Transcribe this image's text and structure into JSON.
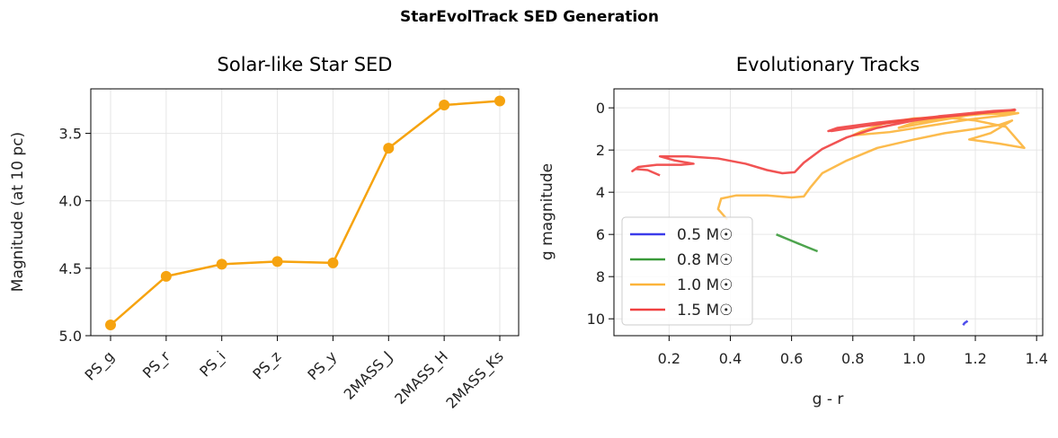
{
  "figure": {
    "suptitle": "StarEvolTrack SED Generation"
  },
  "chart_data": [
    {
      "type": "line",
      "title": "Solar-like Star SED",
      "xlabel": "",
      "ylabel": "Magnitude (at 10 pc)",
      "ylim": [
        5.0,
        3.17
      ],
      "y_inverted": true,
      "yticks": [
        "3.5",
        "4.0",
        "4.5",
        "5.0"
      ],
      "grid": true,
      "color": "#f6a30f",
      "categories": [
        "PS_g",
        "PS_r",
        "PS_i",
        "PS_z",
        "PS_y",
        "2MASS_J",
        "2MASS_H",
        "2MASS_Ks"
      ],
      "values": [
        4.92,
        4.56,
        4.47,
        4.45,
        4.46,
        3.61,
        3.29,
        3.26
      ]
    },
    {
      "type": "line",
      "title": "Evolutionary Tracks",
      "xlabel": "g - r",
      "ylabel": "g magnitude",
      "xlim": [
        0.02,
        1.42
      ],
      "ylim": [
        10.8,
        -0.9
      ],
      "y_inverted": true,
      "xticks": [
        "0.2",
        "0.4",
        "0.6",
        "0.8",
        "1.0",
        "1.2",
        "1.4"
      ],
      "yticks": [
        "0",
        "2",
        "4",
        "6",
        "8",
        "10"
      ],
      "grid": true,
      "legend_location": "lower-left",
      "series": [
        {
          "name": "0.5 M☉",
          "color": "#3b3bea",
          "x": [
            1.16,
            1.165,
            1.175
          ],
          "y": [
            10.3,
            10.2,
            10.1
          ]
        },
        {
          "name": "0.8 M☉",
          "color": "#3a9a3a",
          "x": [
            0.55,
            0.6,
            0.65,
            0.685
          ],
          "y": [
            6.0,
            6.3,
            6.6,
            6.8
          ]
        },
        {
          "name": "1.0 M☉",
          "color": "#fcb43a",
          "x": [
            0.39,
            0.36,
            0.37,
            0.42,
            0.52,
            0.6,
            0.64,
            0.66,
            0.7,
            0.78,
            0.88,
            1.0,
            1.1,
            1.2,
            1.28,
            1.32,
            1.25,
            1.18,
            1.28,
            1.36,
            1.3,
            1.2,
            1.1,
            1.0,
            0.9,
            0.83,
            0.8,
            0.92,
            1.05,
            1.18,
            1.3,
            1.34,
            1.22,
            1.1,
            1.0,
            0.95,
            1.08,
            1.2,
            1.3,
            1.33
          ],
          "y": [
            5.3,
            4.8,
            4.3,
            4.15,
            4.15,
            4.25,
            4.2,
            3.8,
            3.1,
            2.5,
            1.9,
            1.5,
            1.2,
            1.0,
            0.8,
            0.6,
            1.2,
            1.5,
            1.7,
            1.9,
            0.9,
            0.6,
            0.45,
            0.5,
            0.75,
            1.1,
            1.3,
            1.15,
            0.85,
            0.55,
            0.35,
            0.25,
            0.3,
            0.45,
            0.7,
            0.95,
            0.6,
            0.3,
            0.2,
            0.15
          ]
        },
        {
          "name": "1.5 M☉",
          "color": "#f04040",
          "x": [
            0.17,
            0.13,
            0.09,
            0.08,
            0.1,
            0.16,
            0.24,
            0.28,
            0.22,
            0.17,
            0.26,
            0.36,
            0.45,
            0.52,
            0.57,
            0.61,
            0.64,
            0.7,
            0.78,
            0.88,
            1.0,
            1.12,
            1.24,
            1.3,
            1.33,
            1.2,
            1.05,
            0.9,
            0.8,
            0.72,
            0.75,
            0.88,
            1.02,
            1.15,
            1.26,
            1.33,
            1.22,
            1.08,
            0.95,
            0.82,
            0.73,
            0.78,
            0.92,
            1.08,
            1.22,
            1.31,
            1.33
          ],
          "y": [
            3.2,
            2.95,
            2.9,
            3.0,
            2.8,
            2.7,
            2.7,
            2.65,
            2.5,
            2.3,
            2.3,
            2.4,
            2.65,
            2.95,
            3.1,
            3.05,
            2.6,
            1.95,
            1.4,
            0.95,
            0.6,
            0.35,
            0.2,
            0.12,
            0.1,
            0.25,
            0.45,
            0.7,
            0.95,
            1.1,
            0.95,
            0.7,
            0.5,
            0.3,
            0.15,
            0.1,
            0.2,
            0.4,
            0.65,
            0.9,
            1.1,
            0.95,
            0.7,
            0.45,
            0.25,
            0.12,
            0.08
          ]
        }
      ]
    }
  ]
}
